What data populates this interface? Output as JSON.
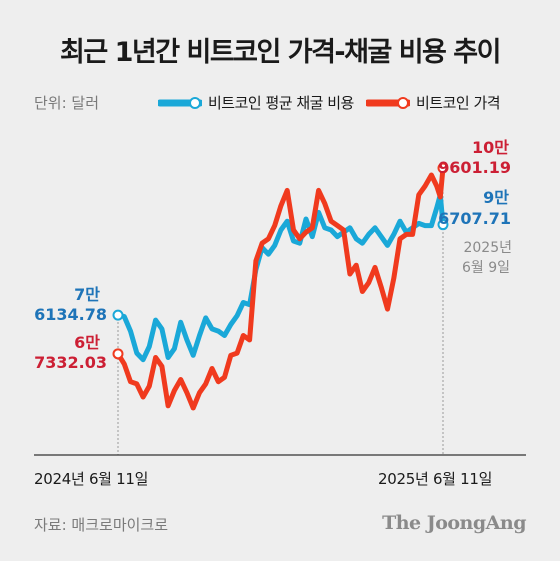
{
  "title": "최근 1년간 비트코인 가격-채굴 비용 추이",
  "unit": "단위: 달러",
  "legend": [
    {
      "name": "비트코인 평균 채굴 비용",
      "color": "#1aa8d8"
    },
    {
      "name": "비트코인 가격",
      "color": "#f03a1e"
    }
  ],
  "annotations": {
    "cost_start_label": "7만",
    "cost_start_value": "6134.78",
    "price_start_label": "6만",
    "price_start_value": "7332.03",
    "price_end_label": "10만",
    "price_end_value": "9601.19",
    "cost_end_label": "9만",
    "cost_end_value": "6707.71",
    "end_date_year": "2025년",
    "end_date_day": "6월 9일"
  },
  "x_labels": {
    "start": "2024년 6월 11일",
    "end": "2025년 6월 11일"
  },
  "source": "자료: 매크로마이크로",
  "brand": "The JoongAng",
  "colors": {
    "cost": "#1aa8d8",
    "price": "#f03a1e",
    "cost_text": "#1e74b8",
    "price_text": "#cc1f34"
  },
  "chart_data": {
    "type": "line",
    "x_start": "2024-06-11",
    "x_end": "2025-06-11",
    "y_unit": "USD",
    "grid": false,
    "legend_position": "top",
    "series": [
      {
        "name": "비트코인 평균 채굴 비용",
        "points": [
          [
            "2024-06-11",
            76134.78
          ],
          [
            "2024-06-18",
            75800
          ],
          [
            "2024-06-25",
            72500
          ],
          [
            "2024-07-02",
            67500
          ],
          [
            "2024-07-09",
            66000
          ],
          [
            "2024-07-16",
            69000
          ],
          [
            "2024-07-23",
            75000
          ],
          [
            "2024-07-30",
            73000
          ],
          [
            "2024-08-06",
            66500
          ],
          [
            "2024-08-13",
            68500
          ],
          [
            "2024-08-20",
            74500
          ],
          [
            "2024-08-27",
            70500
          ],
          [
            "2024-09-03",
            67000
          ],
          [
            "2024-09-10",
            71500
          ],
          [
            "2024-09-17",
            75500
          ],
          [
            "2024-09-24",
            73000
          ],
          [
            "2024-10-01",
            72500
          ],
          [
            "2024-10-08",
            71500
          ],
          [
            "2024-10-15",
            74000
          ],
          [
            "2024-10-22",
            76000
          ],
          [
            "2024-10-29",
            79000
          ],
          [
            "2024-11-05",
            78500
          ],
          [
            "2024-11-12",
            86500
          ],
          [
            "2024-11-19",
            91500
          ],
          [
            "2024-11-26",
            90000
          ],
          [
            "2024-12-03",
            92000
          ],
          [
            "2024-12-10",
            95500
          ],
          [
            "2024-12-17",
            97500
          ],
          [
            "2024-12-24",
            93000
          ],
          [
            "2024-12-31",
            92500
          ],
          [
            "2025-01-07",
            98000
          ],
          [
            "2025-01-14",
            94000
          ],
          [
            "2025-01-21",
            99500
          ],
          [
            "2025-01-28",
            96000
          ],
          [
            "2025-02-04",
            95500
          ],
          [
            "2025-02-11",
            94000
          ],
          [
            "2025-02-18",
            95000
          ],
          [
            "2025-02-25",
            96000
          ],
          [
            "2025-03-04",
            93500
          ],
          [
            "2025-03-11",
            92500
          ],
          [
            "2025-03-18",
            94500
          ],
          [
            "2025-03-25",
            96000
          ],
          [
            "2025-04-01",
            94000
          ],
          [
            "2025-04-08",
            92000
          ],
          [
            "2025-04-15",
            94500
          ],
          [
            "2025-04-22",
            97500
          ],
          [
            "2025-04-29",
            95000
          ],
          [
            "2025-05-06",
            96000
          ],
          [
            "2025-05-13",
            97000
          ],
          [
            "2025-05-20",
            96500
          ],
          [
            "2025-05-27",
            96500
          ],
          [
            "2025-06-02",
            100500
          ],
          [
            "2025-06-06",
            103500
          ],
          [
            "2025-06-09",
            96707.71
          ]
        ]
      },
      {
        "name": "비트코인 가격",
        "points": [
          [
            "2024-06-11",
            67332.03
          ],
          [
            "2024-06-18",
            65000
          ],
          [
            "2024-06-25",
            61000
          ],
          [
            "2024-07-02",
            60500
          ],
          [
            "2024-07-09",
            57500
          ],
          [
            "2024-07-16",
            60000
          ],
          [
            "2024-07-23",
            66500
          ],
          [
            "2024-07-30",
            64500
          ],
          [
            "2024-08-06",
            55500
          ],
          [
            "2024-08-13",
            59000
          ],
          [
            "2024-08-20",
            61500
          ],
          [
            "2024-08-27",
            58500
          ],
          [
            "2024-09-03",
            55000
          ],
          [
            "2024-09-10",
            58500
          ],
          [
            "2024-09-17",
            60500
          ],
          [
            "2024-09-24",
            64000
          ],
          [
            "2024-10-01",
            61000
          ],
          [
            "2024-10-08",
            62000
          ],
          [
            "2024-10-15",
            67000
          ],
          [
            "2024-10-22",
            67500
          ],
          [
            "2024-10-29",
            71500
          ],
          [
            "2024-11-05",
            70500
          ],
          [
            "2024-11-12",
            88500
          ],
          [
            "2024-11-19",
            92500
          ],
          [
            "2024-11-26",
            93500
          ],
          [
            "2024-12-03",
            96500
          ],
          [
            "2024-12-10",
            101000
          ],
          [
            "2024-12-17",
            104500
          ],
          [
            "2024-12-24",
            95500
          ],
          [
            "2024-12-31",
            93500
          ],
          [
            "2025-01-07",
            95000
          ],
          [
            "2025-01-14",
            96000
          ],
          [
            "2025-01-21",
            104500
          ],
          [
            "2025-01-28",
            101500
          ],
          [
            "2025-02-04",
            97500
          ],
          [
            "2025-02-11",
            96500
          ],
          [
            "2025-02-18",
            95500
          ],
          [
            "2025-02-25",
            85500
          ],
          [
            "2025-03-04",
            87500
          ],
          [
            "2025-03-11",
            81500
          ],
          [
            "2025-03-18",
            83500
          ],
          [
            "2025-03-25",
            87000
          ],
          [
            "2025-04-01",
            82500
          ],
          [
            "2025-04-08",
            77500
          ],
          [
            "2025-04-15",
            84500
          ],
          [
            "2025-04-22",
            93500
          ],
          [
            "2025-04-29",
            94500
          ],
          [
            "2025-05-06",
            94500
          ],
          [
            "2025-05-13",
            103500
          ],
          [
            "2025-05-20",
            105500
          ],
          [
            "2025-05-27",
            108000
          ],
          [
            "2025-06-02",
            105500
          ],
          [
            "2025-06-06",
            103000
          ],
          [
            "2025-06-09",
            109601.19
          ]
        ]
      }
    ]
  }
}
